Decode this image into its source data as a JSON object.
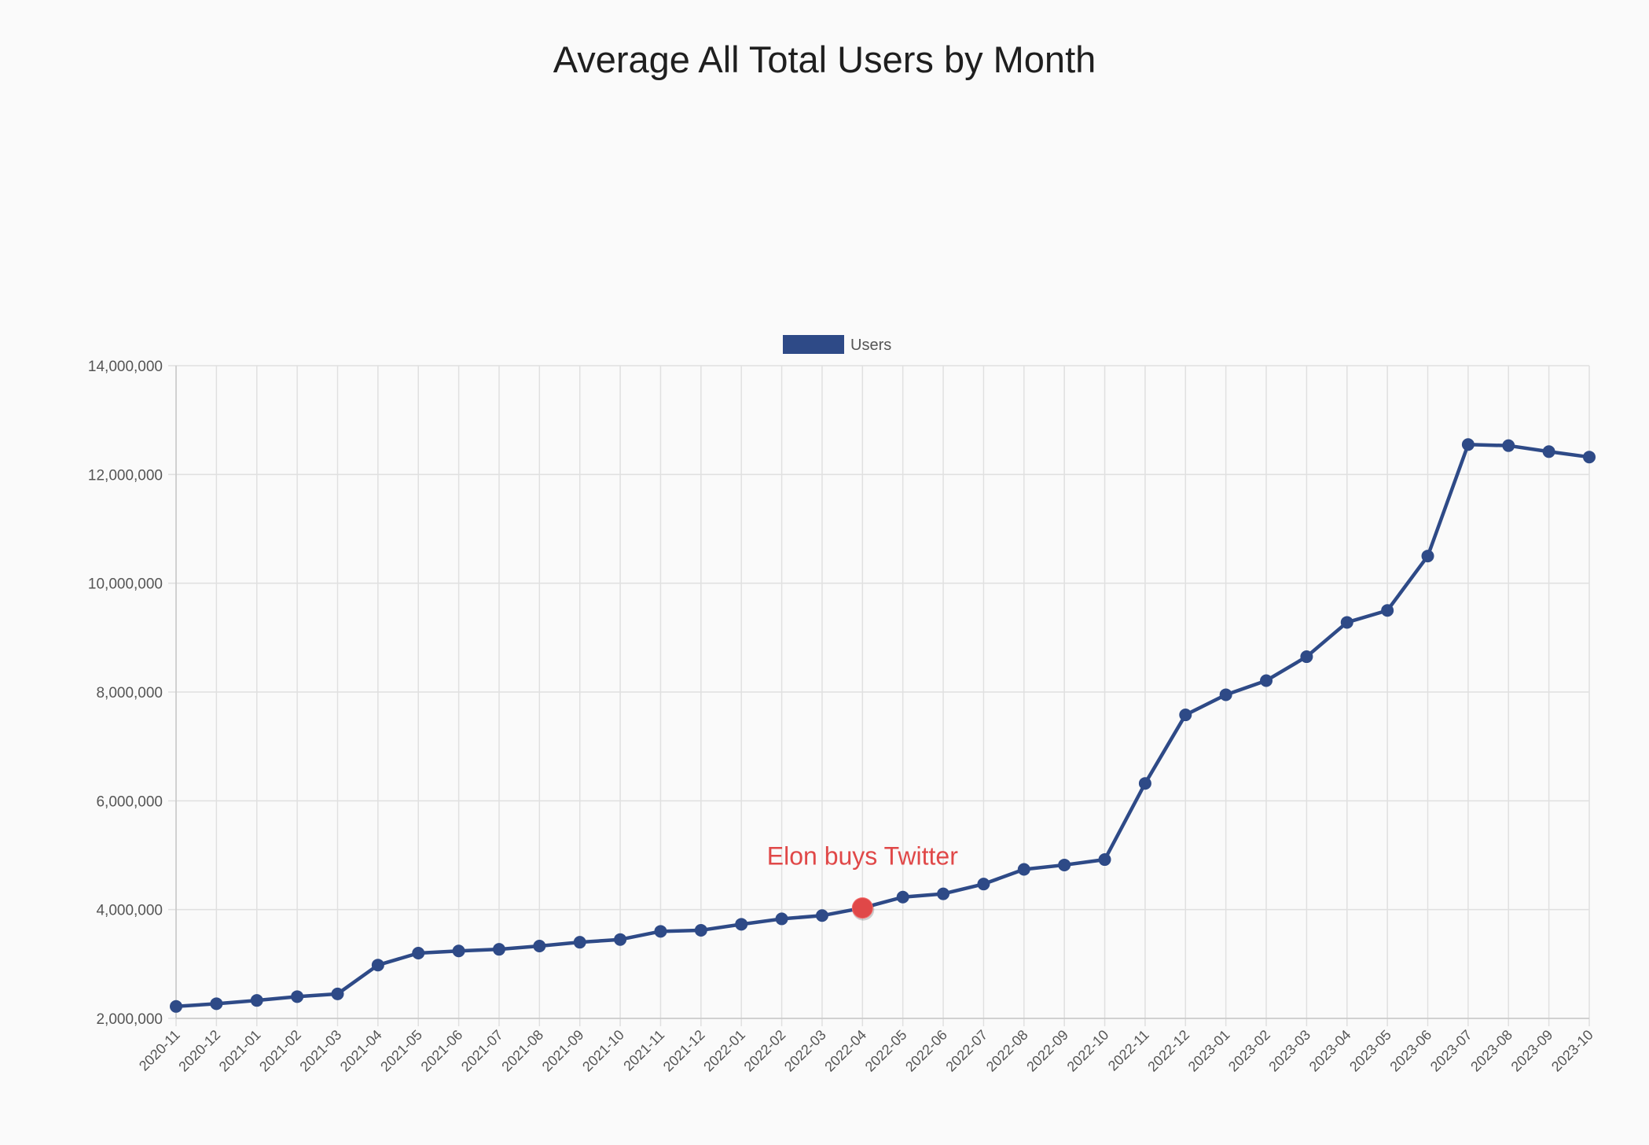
{
  "chart_data": {
    "type": "line",
    "title": "Average All Total Users by Month",
    "xlabel": "",
    "ylabel": "",
    "categories": [
      "2020-11",
      "2020-12",
      "2021-01",
      "2021-02",
      "2021-03",
      "2021-04",
      "2021-05",
      "2021-06",
      "2021-07",
      "2021-08",
      "2021-09",
      "2021-10",
      "2021-11",
      "2021-12",
      "2022-01",
      "2022-02",
      "2022-03",
      "2022-04",
      "2022-05",
      "2022-06",
      "2022-07",
      "2022-08",
      "2022-09",
      "2022-10",
      "2022-11",
      "2022-12",
      "2023-01",
      "2023-02",
      "2023-03",
      "2023-04",
      "2023-05",
      "2023-06",
      "2023-07",
      "2023-08",
      "2023-09",
      "2023-10"
    ],
    "series": [
      {
        "name": "Users",
        "color": "#2e4a87",
        "values": [
          2220000,
          2270000,
          2330000,
          2400000,
          2450000,
          2980000,
          3200000,
          3240000,
          3270000,
          3330000,
          3400000,
          3450000,
          3600000,
          3620000,
          3730000,
          3830000,
          3890000,
          4030000,
          4230000,
          4290000,
          4470000,
          4740000,
          4820000,
          4920000,
          6320000,
          7580000,
          7950000,
          8210000,
          8650000,
          9280000,
          9500000,
          10500000,
          12550000,
          12530000,
          12420000,
          12320000
        ]
      }
    ],
    "ylim": [
      2000000,
      14000000
    ],
    "yticks": [
      2000000,
      4000000,
      6000000,
      8000000,
      10000000,
      12000000,
      14000000
    ],
    "ytick_labels": [
      "2,000,000",
      "4,000,000",
      "6,000,000",
      "8,000,000",
      "10,000,000",
      "12,000,000",
      "14,000,000"
    ],
    "grid": true,
    "legend": "top-center",
    "annotations": [
      {
        "text": "Elon buys Twitter",
        "x": "2022-04",
        "value": 4030000,
        "color": "#e04848"
      }
    ]
  }
}
